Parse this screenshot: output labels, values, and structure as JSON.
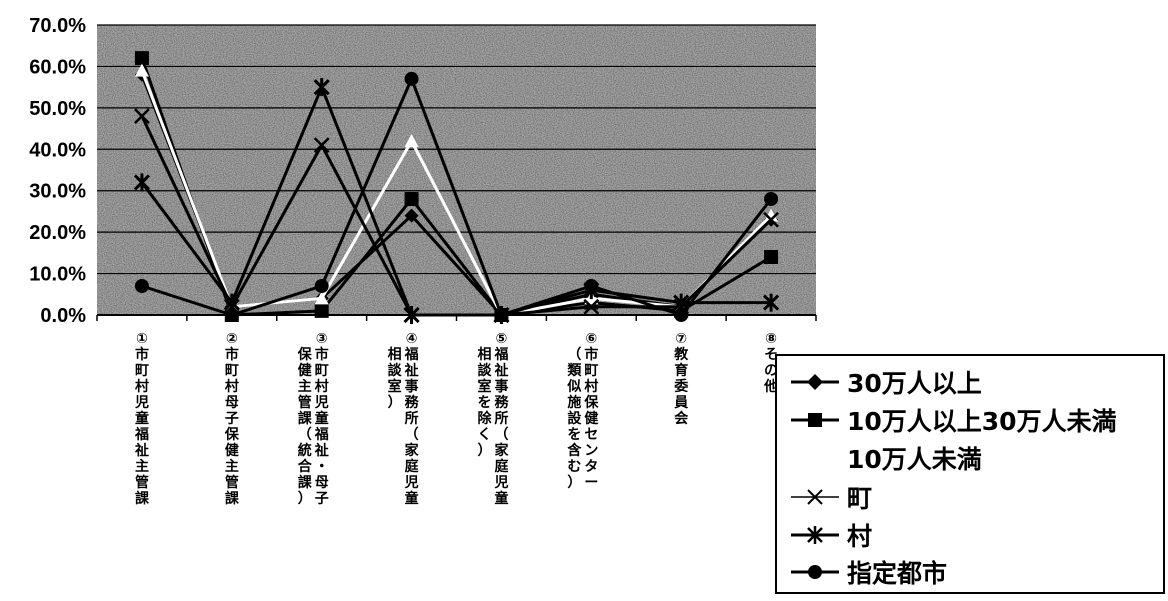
{
  "chart_data": {
    "type": "line",
    "categories": [
      "①市町村児童福祉主管課",
      "②市町村母子保健主管課",
      "③市町村児童福祉・母子保健主管課（統合課）",
      "④福祉事務所（家庭児童相談室）",
      "⑤福祉事務所（家庭児童相談室を除く）",
      "⑥市町村保健センター（類似施設を含む）",
      "⑦教育委員会",
      "⑧その他"
    ],
    "category_columns": [
      [
        {
          "t": "①市町村児童福祉主管課"
        }
      ],
      [
        {
          "t": "②市町村母子保健主管課"
        }
      ],
      [
        {
          "t": "③市町村児童福祉・母子"
        },
        {
          "t": "保健主管課（統合課）"
        }
      ],
      [
        {
          "t": "④福祉事務所（家庭児童"
        },
        {
          "t": "相談室）"
        }
      ],
      [
        {
          "t": "⑤福祉事務所（家庭児童"
        },
        {
          "t": "相談室を除く）"
        }
      ],
      [
        {
          "t": "⑥市町村保健センター"
        },
        {
          "t": "（類似施設を含む）"
        }
      ],
      [
        {
          "t": "⑦教育委員会"
        }
      ],
      [
        {
          "t": "⑧その他"
        }
      ]
    ],
    "yticks": [
      "0.0%",
      "10.0%",
      "20.0%",
      "30.0%",
      "40.0%",
      "50.0%",
      "60.0%",
      "70.0%"
    ],
    "ylim": [
      0,
      70
    ],
    "grid": true,
    "legend_position": "bottom-right",
    "series": [
      {
        "name": "30万人以上",
        "marker": "diamond",
        "color": "#000000",
        "values": [
          58,
          2,
          4,
          24,
          0,
          5,
          2,
          23
        ]
      },
      {
        "name": "10万人以上30万人未満",
        "marker": "square",
        "color": "#000000",
        "values": [
          62,
          0,
          1,
          28,
          0,
          3,
          1,
          14
        ]
      },
      {
        "name": "10万人未満",
        "marker": "triangle",
        "color": "#ffffff",
        "values": [
          59,
          2,
          4,
          42,
          0,
          4,
          2,
          24
        ]
      },
      {
        "name": "町",
        "marker": "x",
        "color": "#000000",
        "values": [
          48,
          2,
          41,
          0,
          0,
          2,
          2,
          23
        ]
      },
      {
        "name": "村",
        "marker": "star",
        "color": "#000000",
        "values": [
          32,
          3,
          55,
          0,
          0,
          6,
          3,
          3
        ]
      },
      {
        "name": "指定都市",
        "marker": "circle",
        "color": "#000000",
        "values": [
          7,
          0,
          7,
          57,
          0,
          7,
          0,
          28
        ]
      }
    ]
  }
}
